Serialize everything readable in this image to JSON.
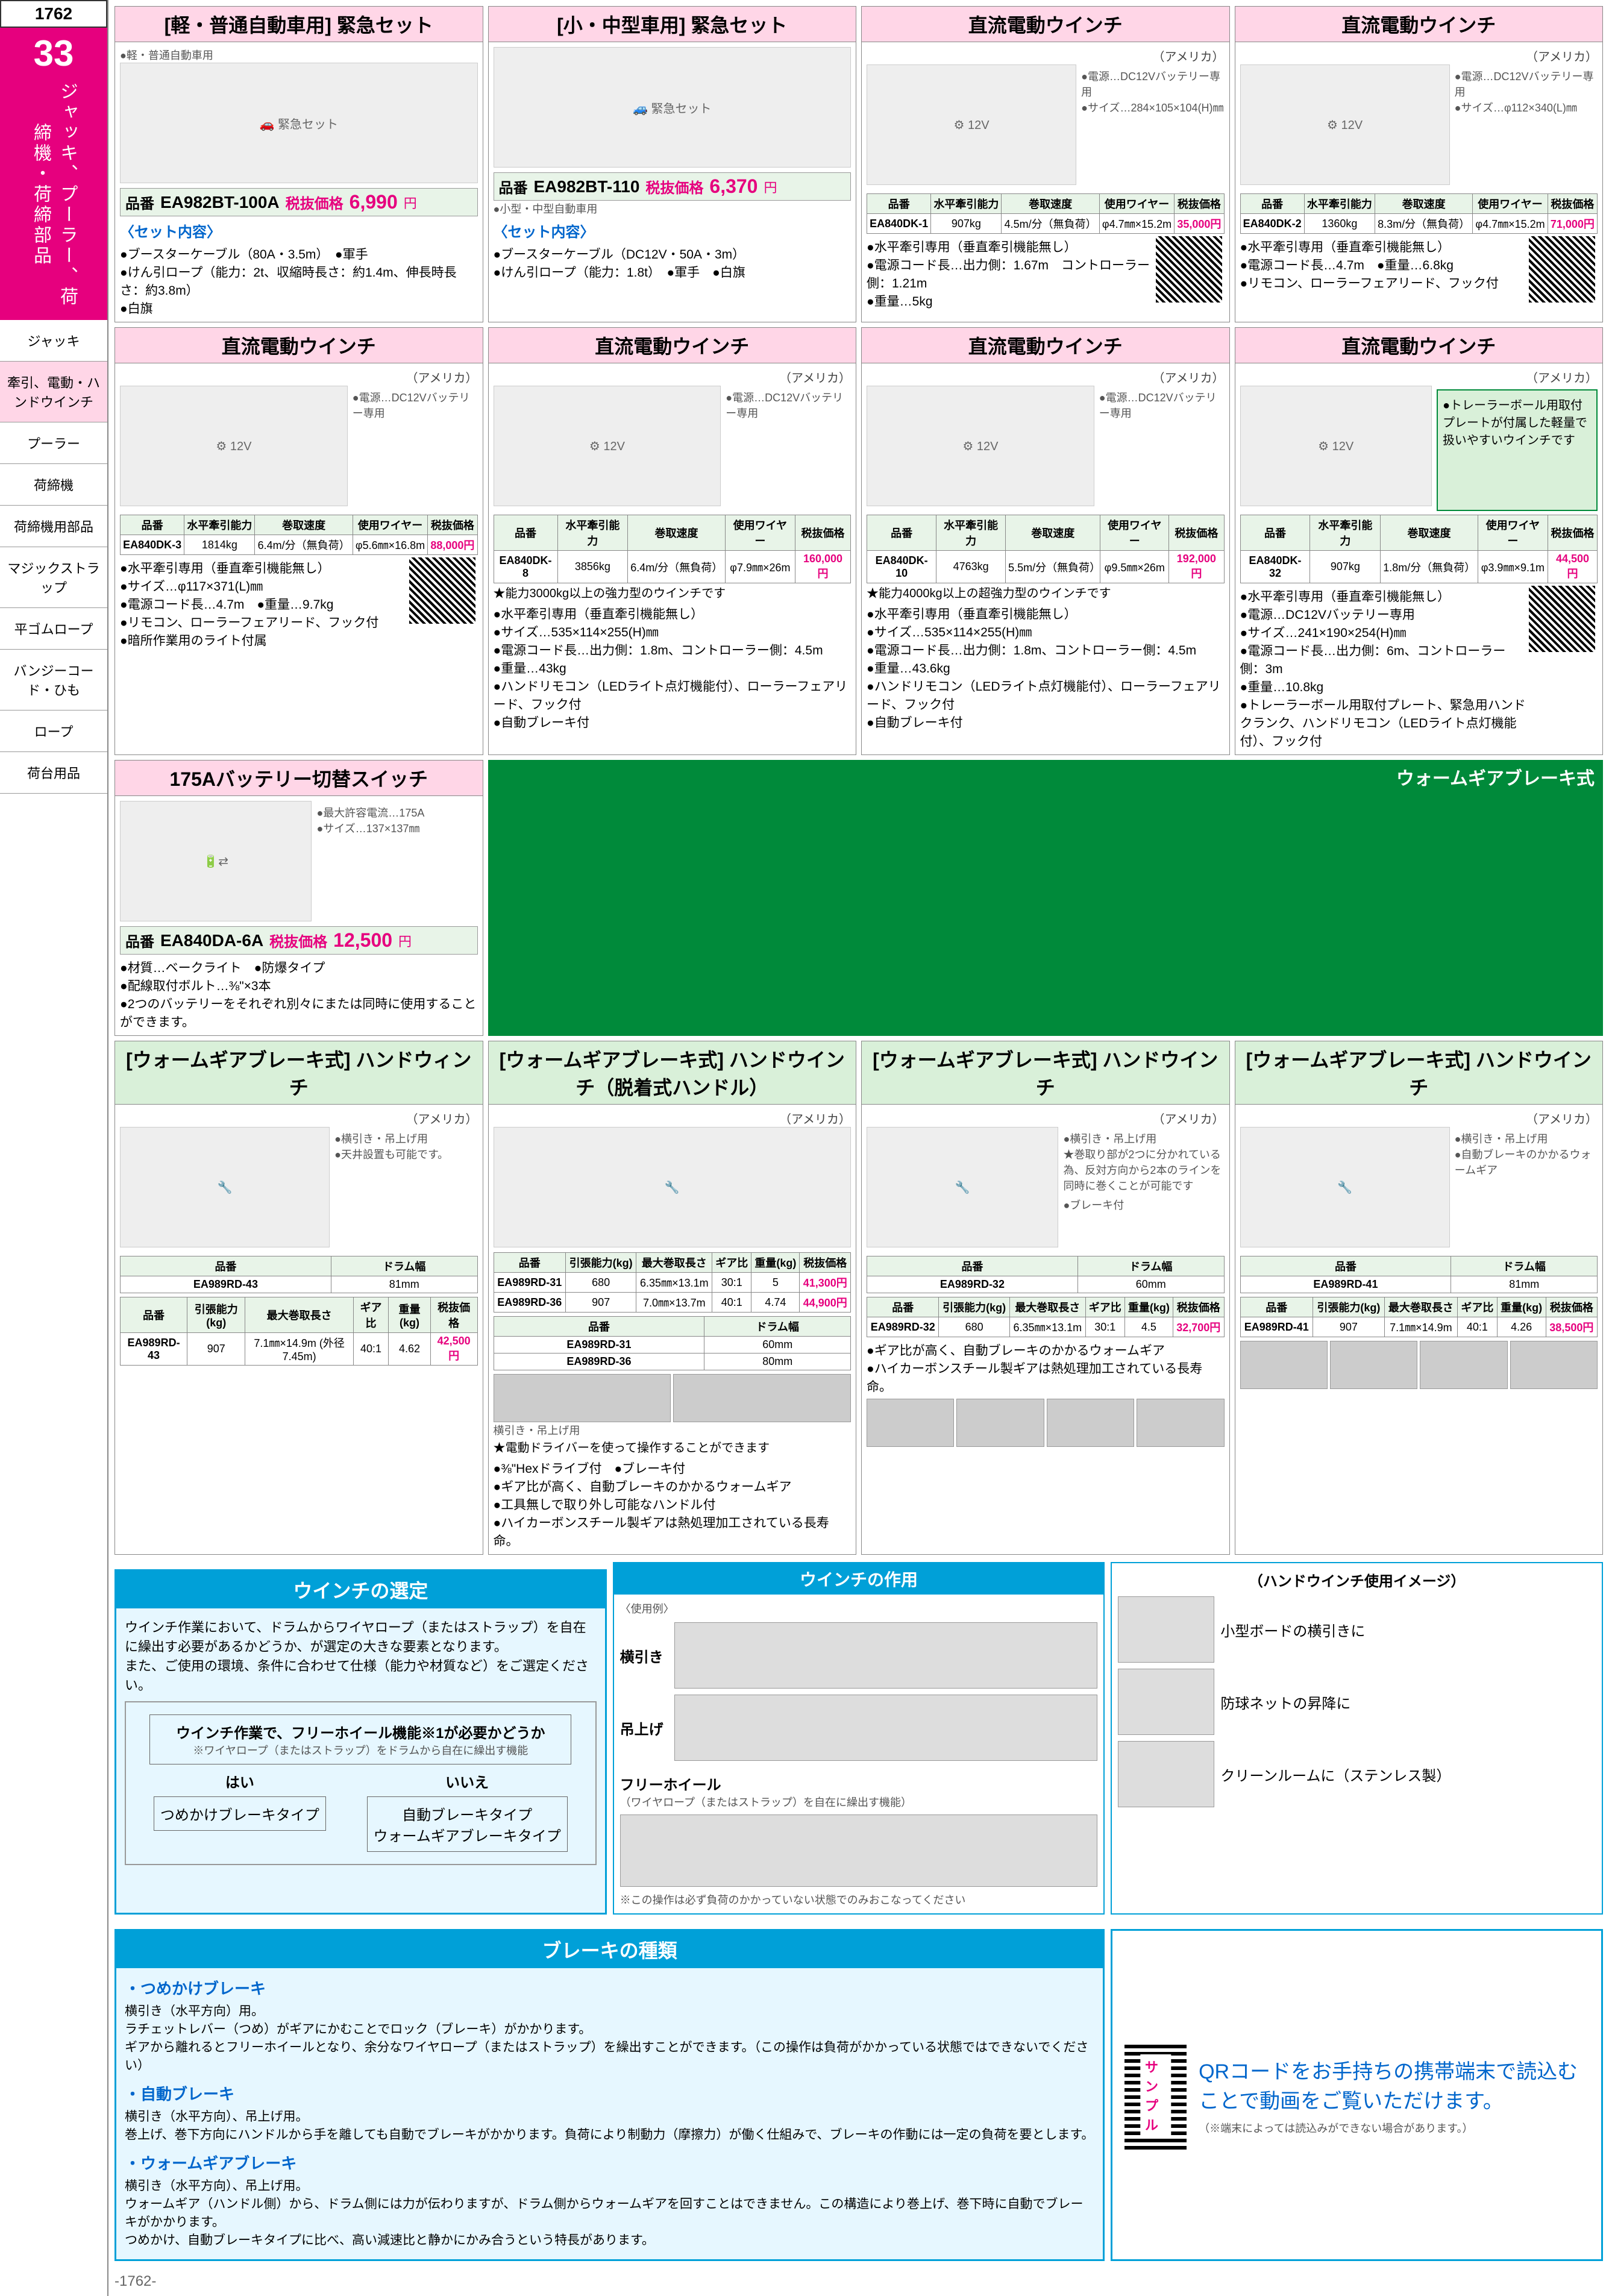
{
  "page_number_top": "1762",
  "chapter_number": "33",
  "chapter_title": "ジャッキ、プーラー、荷締機・荷締部品",
  "nav": [
    "ジャッキ",
    "牽引、電動・ハンドウインチ",
    "プーラー",
    "荷締機",
    "荷締機用部品",
    "マジックストラップ",
    "平ゴムロープ",
    "バンジーコード・ひも",
    "ロープ",
    "荷台用品"
  ],
  "nav_active_idx": 1,
  "products": {
    "p1": {
      "title": "[軽・普通自動車用] 緊急セット",
      "origin_note": "●軽・普通自動車用",
      "part": "EA982BT-100A",
      "price": "6,990",
      "sublabel": "〈セット内容〉",
      "bullets": [
        "ブースターケーブル（80A・3.5m）　●軍手",
        "けん引ロープ（能力：2t、収縮時長さ：約1.4m、伸長時長さ：約3.8m）",
        "白旗"
      ]
    },
    "p2": {
      "title": "[小・中型車用] 緊急セット",
      "part": "EA982BT-110",
      "price": "6,370",
      "sublabel": "〈セット内容〉",
      "origin_note": "●小型・中型自動車用",
      "bullets": [
        "ブースターケーブル（DC12V・50A・3m）",
        "けん引ロープ（能力：1.8t）　●軍手　●白旗"
      ]
    },
    "p3": {
      "title": "直流電動ウインチ",
      "origin": "（アメリカ）",
      "side_specs": [
        "電源…DC12Vバッテリー専用",
        "サイズ…284×105×104(H)㎜"
      ],
      "table": {
        "headers": [
          "品番",
          "水平牽引能力",
          "巻取速度",
          "使用ワイヤー",
          "税抜価格"
        ],
        "rows": [
          [
            "EA840DK-1",
            "907kg",
            "4.5m/分（無負荷）",
            "φ4.7㎜×15.2m",
            "35,000円"
          ]
        ]
      },
      "bullets": [
        "水平牽引専用（垂直牽引機能無し）",
        "電源コード長…出力側：1.67m　コントローラー側：1.21m",
        "重量…5kg"
      ]
    },
    "p4": {
      "title": "直流電動ウインチ",
      "origin": "（アメリカ）",
      "side_specs": [
        "電源…DC12Vバッテリー専用",
        "サイズ…φ112×340(L)㎜"
      ],
      "table": {
        "headers": [
          "品番",
          "水平牽引能力",
          "巻取速度",
          "使用ワイヤー",
          "税抜価格"
        ],
        "rows": [
          [
            "EA840DK-2",
            "1360kg",
            "8.3m/分（無負荷）",
            "φ4.7㎜×15.2m",
            "71,000円"
          ]
        ]
      },
      "bullets": [
        "水平牽引専用（垂直牽引機能無し）",
        "電源コード長…4.7m　●重量…6.8kg",
        "リモコン、ローラーフェアリード、フック付"
      ]
    },
    "p5": {
      "title": "直流電動ウインチ",
      "origin": "（アメリカ）",
      "side_specs": [
        "電源…DC12Vバッテリー専用"
      ],
      "table": {
        "headers": [
          "品番",
          "水平牽引能力",
          "巻取速度",
          "使用ワイヤー",
          "税抜価格"
        ],
        "rows": [
          [
            "EA840DK-3",
            "1814kg",
            "6.4m/分（無負荷）",
            "φ5.6㎜×16.8m",
            "88,000円"
          ]
        ]
      },
      "bullets": [
        "水平牽引専用（垂直牽引機能無し）",
        "サイズ…φ117×371(L)㎜",
        "電源コード長…4.7m　●重量…9.7kg",
        "リモコン、ローラーフェアリード、フック付",
        "暗所作業用のライト付属"
      ]
    },
    "p6": {
      "title": "直流電動ウインチ",
      "origin": "（アメリカ）",
      "side_specs": [
        "電源…DC12Vバッテリー専用"
      ],
      "table": {
        "headers": [
          "品番",
          "水平牽引能力",
          "巻取速度",
          "使用ワイヤー",
          "税抜価格"
        ],
        "rows": [
          [
            "EA840DK-8",
            "3856kg",
            "6.4m/分（無負荷）",
            "φ7.9㎜×26m",
            "160,000円"
          ]
        ]
      },
      "star": "能力3000kg以上の強力型のウインチです",
      "bullets": [
        "水平牽引専用（垂直牽引機能無し）",
        "サイズ…535×114×255(H)㎜",
        "電源コード長…出力側：1.8m、コントローラー側：4.5m",
        "重量…43kg",
        "ハンドリモコン（LEDライト点灯機能付）、ローラーフェアリード、フック付",
        "自動ブレーキ付"
      ]
    },
    "p7": {
      "title": "直流電動ウインチ",
      "origin": "（アメリカ）",
      "side_specs": [
        "電源…DC12Vバッテリー専用"
      ],
      "table": {
        "headers": [
          "品番",
          "水平牽引能力",
          "巻取速度",
          "使用ワイヤー",
          "税抜価格"
        ],
        "rows": [
          [
            "EA840DK-10",
            "4763kg",
            "5.5m/分（無負荷）",
            "φ9.5㎜×26m",
            "192,000円"
          ]
        ]
      },
      "star": "能力4000kg以上の超強力型のウインチです",
      "bullets": [
        "水平牽引専用（垂直牽引機能無し）",
        "サイズ…535×114×255(H)㎜",
        "電源コード長…出力側：1.8m、コントローラー側：4.5m",
        "重量…43.6kg",
        "ハンドリモコン（LEDライト点灯機能付）、ローラーフェアリード、フック付",
        "自動ブレーキ付"
      ]
    },
    "p8": {
      "title": "直流電動ウインチ",
      "origin": "（アメリカ）",
      "note_green": "●トレーラーボール用取付プレートが付属した軽量で扱いやすいウインチです",
      "table": {
        "headers": [
          "品番",
          "水平牽引能力",
          "巻取速度",
          "使用ワイヤー",
          "税抜価格"
        ],
        "rows": [
          [
            "EA840DK-32",
            "907kg",
            "1.8m/分（無負荷）",
            "φ3.9㎜×9.1m",
            "44,500円"
          ]
        ]
      },
      "bullets": [
        "水平牽引専用（垂直牽引機能無し）",
        "電源…DC12Vバッテリー専用",
        "サイズ…241×190×254(H)㎜",
        "電源コード長…出力側：6m、コントローラー側：3m",
        "重量…10.8kg",
        "トレーラーボール用取付プレート、緊急用ハンドクランク、ハンドリモコン（LEDライト点灯機能付）、フック付"
      ]
    },
    "p9": {
      "title": "175Aバッテリー切替スイッチ",
      "side_specs": [
        "最大許容電流…175A",
        "サイズ…137×137㎜"
      ],
      "part": "EA840DA-6A",
      "price": "12,500",
      "bullets": [
        "材質…ベークライト　●防爆タイプ",
        "配線取付ボルト…⅜\"×3本",
        "2つのバッテリーをそれぞれ別々にまたは同時に使用することができます。"
      ]
    }
  },
  "worm_section_title": "ウォームギアブレーキ式",
  "worm_products": {
    "w1": {
      "title": "[ウォームギアブレーキ式] ハンドウィンチ",
      "origin": "（アメリカ）",
      "side_specs": [
        "横引き・吊上げ用",
        "天井設置も可能です。"
      ],
      "drum_table": {
        "headers": [
          "品番",
          "ドラム幅"
        ],
        "rows": [
          [
            "EA989RD-43",
            "81mm"
          ]
        ]
      },
      "table": {
        "headers": [
          "品番",
          "引張能力(kg)",
          "最大巻取長さ",
          "ギア比",
          "重量(kg)",
          "税抜価格"
        ],
        "rows": [
          [
            "EA989RD-43",
            "907",
            "7.1㎜×14.9m (外径7.45m)",
            "40:1",
            "4.62",
            "42,500円"
          ]
        ]
      }
    },
    "w2": {
      "title": "[ウォームギアブレーキ式] ハンドウインチ（脱着式ハンドル）",
      "origin": "（アメリカ）",
      "table": {
        "headers": [
          "品番",
          "引張能力(kg)",
          "最大巻取長さ",
          "ギア比",
          "重量(kg)",
          "税抜価格"
        ],
        "rows": [
          [
            "EA989RD-31",
            "680",
            "6.35㎜×13.1m",
            "30:1",
            "5",
            "41,300円"
          ],
          [
            "EA989RD-36",
            "907",
            "7.0㎜×13.7m",
            "40:1",
            "4.74",
            "44,900円"
          ]
        ]
      },
      "drum_table": {
        "headers": [
          "品番",
          "ドラム幅"
        ],
        "rows": [
          [
            "EA989RD-31",
            "60mm"
          ],
          [
            "EA989RD-36",
            "80mm"
          ]
        ]
      },
      "sublabel": "横引き・吊上げ用",
      "star": "電動ドライバーを使って操作することができます",
      "bullets": [
        "⅜\"Hexドライブ付　●ブレーキ付",
        "ギア比が高く、自動ブレーキのかかるウォームギア",
        "工具無しで取り外し可能なハンドル付",
        "ハイカーボンスチール製ギアは熱処理加工されている長寿命。"
      ]
    },
    "w3": {
      "title": "[ウォームギアブレーキ式] ハンドウインチ",
      "origin": "（アメリカ）",
      "side_specs": [
        "横引き・吊上げ用"
      ],
      "star": "巻取り部が2つに分かれている為、反対方向から2本のラインを同時に巻くことが可能です",
      "bullets2": [
        "ブレーキ付"
      ],
      "drum_table": {
        "headers": [
          "品番",
          "ドラム幅"
        ],
        "rows": [
          [
            "EA989RD-32",
            "60mm"
          ]
        ]
      },
      "table": {
        "headers": [
          "品番",
          "引張能力(kg)",
          "最大巻取長さ",
          "ギア比",
          "重量(kg)",
          "税抜価格"
        ],
        "rows": [
          [
            "EA989RD-32",
            "680",
            "6.35㎜×13.1m",
            "30:1",
            "4.5",
            "32,700円"
          ]
        ]
      },
      "bullets": [
        "ギア比が高く、自動ブレーキのかかるウォームギア",
        "ハイカーボンスチール製ギアは熱処理加工されている長寿命。"
      ]
    },
    "w4": {
      "title": "[ウォームギアブレーキ式] ハンドウインチ",
      "origin": "（アメリカ）",
      "side_specs": [
        "横引き・吊上げ用",
        "自動ブレーキのかかるウォームギア"
      ],
      "drum_table": {
        "headers": [
          "品番",
          "ドラム幅"
        ],
        "rows": [
          [
            "EA989RD-41",
            "81mm"
          ]
        ]
      },
      "table": {
        "headers": [
          "品番",
          "引張能力(kg)",
          "最大巻取長さ",
          "ギア比",
          "重量(kg)",
          "税抜価格"
        ],
        "rows": [
          [
            "EA989RD-41",
            "907",
            "7.1㎜×14.9m",
            "40:1",
            "4.26",
            "38,500円"
          ]
        ]
      }
    }
  },
  "selection": {
    "title": "ウインチの選定",
    "intro": "ウインチ作業において、ドラムからワイヤロープ（またはストラップ）を自在に繰出す必要があるかどうか、が選定の大きな要素となります。\nまた、ご使用の環境、条件に合わせて仕様（能力や材質など）をご選定ください。",
    "node1": "ウインチ作業で、フリーホイール機能※1が必要かどうか",
    "node1_sub": "※ワイヤロープ（またはストラップ）をドラムから自在に繰出す機能",
    "yes": "はい",
    "no": "いいえ",
    "result_yes": "つめかけブレーキタイプ",
    "result_no": "自動ブレーキタイプ\nウォームギアブレーキタイプ"
  },
  "brakes": {
    "title": "ブレーキの種類",
    "types": [
      {
        "name": "・つめかけブレーキ",
        "desc": "横引き（水平方向）用。\nラチェットレバー（つめ）がギアにかむことでロック（ブレーキ）がかかります。\nギアから離れるとフリーホイールとなり、余分なワイヤロープ（またはストラップ）を繰出すことができます。（この操作は負荷がかかっている状態ではできないでください）"
      },
      {
        "name": "・自動ブレーキ",
        "desc": "横引き（水平方向）、吊上げ用。\n巻上げ、巻下方向にハンドルから手を離しても自動でブレーキがかかります。負荷により制動力（摩擦力）が働く仕組みで、ブレーキの作動には一定の負荷を要とします。"
      },
      {
        "name": "・ウォームギアブレーキ",
        "desc": "横引き（水平方向）、吊上げ用。\nウォームギア（ハンドル側）から、ドラム側には力が伝わりますが、ドラム側からウォームギアを回すことはできません。この構造により巻上げ、巻下時に自動でブレーキがかかります。\nつめかけ、自動ブレーキタイプに比べ、高い減速比と静かにかみ合うという特長があります。"
      }
    ]
  },
  "action": {
    "title": "ウインチの作用",
    "usage_label": "〈使用例〉",
    "items": [
      "横引き",
      "吊上げ"
    ],
    "freewheel_label": "フリーホイール",
    "freewheel_desc": "（ワイヤロープ（またはストラップ）を自在に繰出す機能）",
    "caution": "※この操作は必ず負荷のかかっていない状態でのみおこなってください"
  },
  "usage_images": {
    "title": "（ハンドウインチ使用イメージ）",
    "items": [
      "小型ボードの横引きに",
      "防球ネットの昇降に",
      "クリーンルームに（ステンレス製）"
    ]
  },
  "qr_banner": {
    "line1": "QRコードをお手持ちの携帯端末で読込むことで動画をご覧いただけます。",
    "line2": "（※端末によっては読込みができない場合があります。）"
  },
  "footer": "-1762-",
  "colors": {
    "pink": "#ffd6e7",
    "magenta": "#e6007e",
    "green": "#008a3a",
    "lightgreen": "#d9f0d9",
    "cyan": "#00a0d8",
    "lightcyan": "#e6f7ff"
  }
}
